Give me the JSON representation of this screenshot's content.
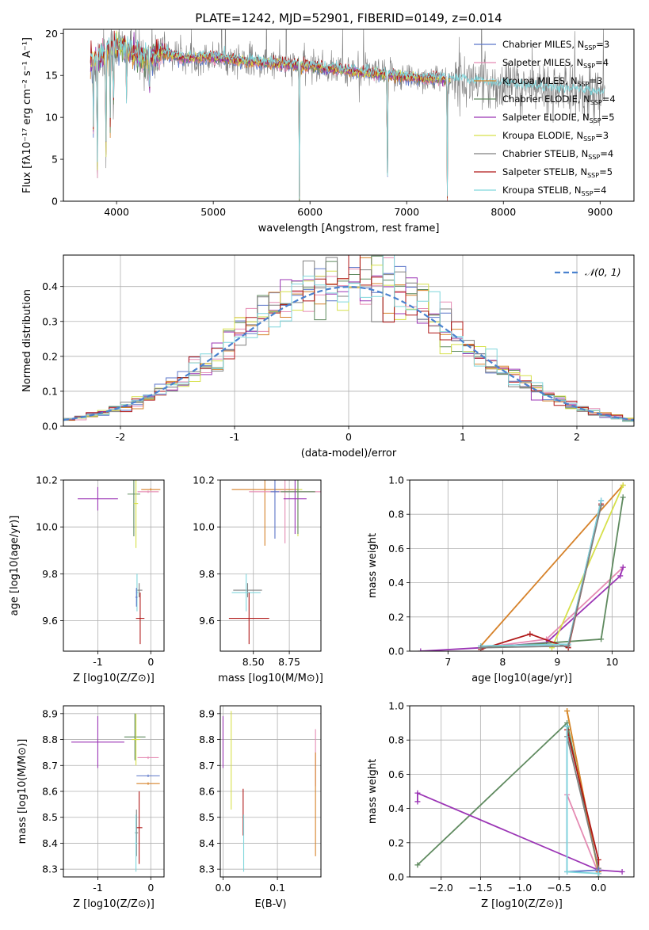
{
  "page_title": "PLATE=1242, MJD=52901, FIBERID=0149, z=0.014",
  "colors": {
    "chabrier_miles": "#5b76c9",
    "salpeter_miles": "#e58bb3",
    "kroupa_miles": "#d6822a",
    "chabrier_elodie": "#5f8a5f",
    "salpeter_elodie": "#9b35b5",
    "kroupa_elodie": "#d6e04a",
    "chabrier_stelib": "#7f7f7f",
    "salpeter_stelib": "#b01818",
    "kroupa_stelib": "#7fd6dc",
    "gaussian": "#4a82cf"
  },
  "chart_data": [
    {
      "id": "spectrum",
      "type": "line",
      "title": "PLATE=1242, MJD=52901, FIBERID=0149, z=0.014",
      "xlabel": "wavelength [Angstrom, rest frame]",
      "ylabel": "Flux [fλ10⁻¹⁷ erg cm⁻² s⁻¹ A⁻¹]",
      "xlim": [
        3450,
        9350
      ],
      "ylim": [
        0,
        20.5
      ],
      "xticks": [
        4000,
        5000,
        6000,
        7000,
        8000,
        9000
      ],
      "yticks": [
        0,
        5,
        10,
        15,
        20
      ],
      "legend_position": "top-right",
      "legend": [
        {
          "main": "Chabrier MILES, N",
          "sub": "SSP",
          "tail": "=3",
          "color_key": "chabrier_miles"
        },
        {
          "main": "Salpeter MILES, N",
          "sub": "SSP",
          "tail": "=4",
          "color_key": "salpeter_miles"
        },
        {
          "main": "Kroupa MILES, N",
          "sub": "SSP",
          "tail": "=3",
          "color_key": "kroupa_miles"
        },
        {
          "main": "Chabrier ELODIE, N",
          "sub": "SSP",
          "tail": "=4",
          "color_key": "chabrier_elodie"
        },
        {
          "main": "Salpeter ELODIE, N",
          "sub": "SSP",
          "tail": "=5",
          "color_key": "salpeter_elodie"
        },
        {
          "main": "Kroupa ELODIE, N",
          "sub": "SSP",
          "tail": "=3",
          "color_key": "kroupa_elodie"
        },
        {
          "main": "Chabrier STELIB, N",
          "sub": "SSP",
          "tail": "=4",
          "color_key": "chabrier_stelib"
        },
        {
          "main": "Salpeter STELIB, N",
          "sub": "SSP",
          "tail": "=5",
          "color_key": "salpeter_stelib"
        },
        {
          "main": "Kroupa STELIB, N",
          "sub": "SSP",
          "tail": "=4",
          "color_key": "kroupa_stelib"
        }
      ],
      "continuum_nodes": [
        [
          3730,
          16.5
        ],
        [
          3800,
          17.0
        ],
        [
          3900,
          18.0
        ],
        [
          4000,
          18.5
        ],
        [
          4100,
          18.0
        ],
        [
          4300,
          17.0
        ],
        [
          4500,
          17.8
        ],
        [
          4700,
          17.0
        ],
        [
          5000,
          17.2
        ],
        [
          5300,
          16.8
        ],
        [
          5600,
          16.4
        ],
        [
          5900,
          16.2
        ],
        [
          6200,
          15.8
        ],
        [
          6600,
          15.3
        ],
        [
          7000,
          14.8
        ],
        [
          7400,
          14.5
        ],
        [
          7800,
          14.1
        ],
        [
          8200,
          13.6
        ],
        [
          8600,
          13.2
        ],
        [
          9050,
          12.8
        ]
      ],
      "absorption_features": [
        {
          "wavelength": 3760,
          "depth": 8.0
        },
        {
          "wavelength": 3800,
          "depth": 16.0
        },
        {
          "wavelength": 3890,
          "depth": 15.0
        },
        {
          "wavelength": 3934,
          "depth": 9.0
        },
        {
          "wavelength": 3968,
          "depth": 8.0
        },
        {
          "wavelength": 4102,
          "depth": 6.0
        },
        {
          "wavelength": 4340,
          "depth": 5.0
        },
        {
          "wavelength": 5890,
          "depth": 16.0
        },
        {
          "wavelength": 6800,
          "depth": 15.0
        },
        {
          "wavelength": 7420,
          "depth": 14.0
        }
      ]
    },
    {
      "id": "residuals",
      "type": "histogram",
      "xlabel": "(data-model)/error",
      "ylabel": "Normed distribution",
      "xlim": [
        -2.5,
        2.5
      ],
      "ylim": [
        0,
        0.49
      ],
      "xticks": [
        -2,
        -1,
        0,
        1,
        2
      ],
      "yticks": [
        0.0,
        0.1,
        0.2,
        0.3,
        0.4
      ],
      "legend": "𝒩(0, 1)",
      "legend_position": "top-right",
      "bin_width": 0.1,
      "bin_start": -2.5,
      "reference_distribution": {
        "mean": 0,
        "sigma": 1
      }
    },
    {
      "id": "age-vs-Z",
      "type": "errorbar",
      "xlabel": "Z [log10(Z/Z⊙)]",
      "ylabel": "age  [log10(age/yr)]",
      "xlim": [
        -1.65,
        0.25
      ],
      "ylim": [
        9.47,
        10.2
      ],
      "xticks": [
        -1,
        0
      ],
      "yticks": [
        9.6,
        9.8,
        10.0,
        10.2
      ],
      "points": [
        {
          "c": "salpeter_elodie",
          "x": -1.0,
          "y": 10.12,
          "xe": 0.38,
          "ye": 0.05
        },
        {
          "c": "chabrier_elodie",
          "x": -0.32,
          "y": 10.14,
          "xe": 0.12,
          "ye": 0.18
        },
        {
          "c": "kroupa_elodie",
          "x": -0.28,
          "y": 10.1,
          "xe": 0.04,
          "ye": 0.19
        },
        {
          "c": "kroupa_miles",
          "x": 0.0,
          "y": 10.16,
          "xe": 0.18,
          "ye": 0.005
        },
        {
          "c": "salpeter_miles",
          "x": -0.05,
          "y": 10.15,
          "xe": 0.2,
          "ye": 0.005
        },
        {
          "c": "chabrier_stelib",
          "x": -0.22,
          "y": 9.73,
          "xe": 0.06,
          "ye": 0.03
        },
        {
          "c": "kroupa_stelib",
          "x": -0.26,
          "y": 9.72,
          "xe": 0.02,
          "ye": 0.08
        },
        {
          "c": "chabrier_miles",
          "x": -0.27,
          "y": 9.7,
          "xe": 0.02,
          "ye": 0.04
        },
        {
          "c": "salpeter_stelib",
          "x": -0.2,
          "y": 9.61,
          "xe": 0.08,
          "ye": 0.11
        }
      ]
    },
    {
      "id": "age-vs-mass",
      "type": "errorbar",
      "xlabel": "mass [log10(M/M⊙)]",
      "ylabel": "",
      "xlim": [
        8.27,
        8.97
      ],
      "ylim": [
        9.47,
        10.2
      ],
      "xticks": [
        8.5,
        8.75
      ],
      "xticklabels": [
        "8.50",
        "8.75"
      ],
      "yticks": [
        9.6,
        9.8,
        10.0,
        10.2
      ],
      "points": [
        {
          "c": "kroupa_miles",
          "x": 8.58,
          "y": 10.16,
          "xe": 0.23,
          "ye": 0.24
        },
        {
          "c": "salpeter_miles",
          "x": 8.72,
          "y": 10.15,
          "xe": 0.25,
          "ye": 0.22
        },
        {
          "c": "kroupa_elodie",
          "x": 8.81,
          "y": 10.16,
          "xe": 0.03,
          "ye": 0.2
        },
        {
          "c": "chabrier_elodie",
          "x": 8.81,
          "y": 10.15,
          "xe": 0.12,
          "ye": 0.18
        },
        {
          "c": "salpeter_elodie",
          "x": 8.79,
          "y": 10.12,
          "xe": 0.08,
          "ye": 0.15
        },
        {
          "c": "chabrier_miles",
          "x": 8.65,
          "y": 10.15,
          "xe": 0.03,
          "ye": 0.2
        },
        {
          "c": "chabrier_stelib",
          "x": 8.46,
          "y": 9.73,
          "xe": 0.1,
          "ye": 0.03
        },
        {
          "c": "kroupa_stelib",
          "x": 8.45,
          "y": 9.72,
          "xe": 0.1,
          "ye": 0.08
        },
        {
          "c": "salpeter_stelib",
          "x": 8.47,
          "y": 9.61,
          "xe": 0.14,
          "ye": 0.11
        }
      ]
    },
    {
      "id": "massweight-vs-age",
      "type": "line",
      "xlabel": "age  [log10(age/yr)]",
      "ylabel": "mass weight",
      "xlim": [
        6.3,
        10.4
      ],
      "ylim": [
        0.0,
        1.0
      ],
      "xticks": [
        7,
        8,
        9,
        10
      ],
      "yticks": [
        0.0,
        0.2,
        0.4,
        0.6,
        0.8,
        1.0
      ],
      "series": [
        {
          "c": "kroupa_miles",
          "x": [
            7.6,
            10.2
          ],
          "y": [
            0.03,
            0.97
          ]
        },
        {
          "c": "salpeter_miles",
          "x": [
            7.6,
            8.8,
            10.2
          ],
          "y": [
            0.02,
            0.07,
            0.49
          ]
        },
        {
          "c": "chabrier_miles",
          "x": [
            7.6,
            9.2,
            9.8
          ],
          "y": [
            0.03,
            0.04,
            0.88
          ]
        },
        {
          "c": "salpeter_elodie",
          "x": [
            6.5,
            7.6,
            8.8,
            10.15,
            10.2
          ],
          "y": [
            0.0,
            0.02,
            0.05,
            0.44,
            0.49
          ]
        },
        {
          "c": "kroupa_elodie",
          "x": [
            8.9,
            10.2
          ],
          "y": [
            0.02,
            0.97
          ]
        },
        {
          "c": "chabrier_elodie",
          "x": [
            7.6,
            9.8,
            10.2
          ],
          "y": [
            0.02,
            0.07,
            0.9
          ]
        },
        {
          "c": "salpeter_stelib",
          "x": [
            7.6,
            8.5,
            9.2,
            9.8
          ],
          "y": [
            0.01,
            0.1,
            0.02,
            0.86
          ]
        },
        {
          "c": "kroupa_stelib",
          "x": [
            7.6,
            9.2,
            9.8
          ],
          "y": [
            0.03,
            0.04,
            0.88
          ]
        },
        {
          "c": "chabrier_stelib",
          "x": [
            7.6,
            9.2,
            9.8
          ],
          "y": [
            0.02,
            0.03,
            0.85
          ]
        }
      ]
    },
    {
      "id": "mass-vs-Z",
      "type": "errorbar",
      "xlabel": "Z [log10(Z/Z⊙)]",
      "ylabel": "mass [log10(M/M⊙)]",
      "xlim": [
        -1.65,
        0.25
      ],
      "ylim": [
        8.27,
        8.93
      ],
      "xticks": [
        -1,
        0
      ],
      "yticks": [
        8.3,
        8.4,
        8.5,
        8.6,
        8.7,
        8.8,
        8.9
      ],
      "points": [
        {
          "c": "salpeter_elodie",
          "x": -1.0,
          "y": 8.79,
          "xe": 0.5,
          "ye": 0.1
        },
        {
          "c": "chabrier_elodie",
          "x": -0.3,
          "y": 8.81,
          "xe": 0.2,
          "ye": 0.09
        },
        {
          "c": "kroupa_elodie",
          "x": -0.28,
          "y": 8.8,
          "xe": 0.08,
          "ye": 0.1
        },
        {
          "c": "salpeter_miles",
          "x": -0.05,
          "y": 8.73,
          "xe": 0.2,
          "ye": 0.005
        },
        {
          "c": "chabrier_miles",
          "x": -0.05,
          "y": 8.66,
          "xe": 0.22,
          "ye": 0.005
        },
        {
          "c": "kroupa_miles",
          "x": -0.05,
          "y": 8.63,
          "xe": 0.22,
          "ye": 0.005
        },
        {
          "c": "salpeter_stelib",
          "x": -0.22,
          "y": 8.46,
          "xe": 0.06,
          "ye": 0.14
        },
        {
          "c": "chabrier_stelib",
          "x": -0.27,
          "y": 8.44,
          "xe": 0.03,
          "ye": 0.09
        },
        {
          "c": "kroupa_stelib",
          "x": -0.28,
          "y": 8.4,
          "xe": 0.02,
          "ye": 0.11
        }
      ]
    },
    {
      "id": "mass-vs-EBV",
      "type": "errorbar",
      "xlabel": "E(B-V)",
      "ylabel": "",
      "xlim": [
        -0.005,
        0.18
      ],
      "ylim": [
        8.27,
        8.93
      ],
      "xticks": [
        0.0,
        0.1
      ],
      "xticklabels": [
        "0.0",
        "0.1"
      ],
      "yticks": [
        8.3,
        8.4,
        8.5,
        8.6,
        8.7,
        8.8,
        8.9
      ],
      "points": [
        {
          "c": "salpeter_elodie",
          "x": 0.0,
          "y": 8.79,
          "xe": 0.0,
          "ye": 0.1
        },
        {
          "c": "kroupa_elodie",
          "x": 0.015,
          "y": 8.72,
          "xe": 0.0,
          "ye": 0.19
        },
        {
          "c": "salpeter_stelib",
          "x": 0.037,
          "y": 8.52,
          "xe": 0.0,
          "ye": 0.09
        },
        {
          "c": "kroupa_stelib",
          "x": 0.038,
          "y": 8.4,
          "xe": 0.0,
          "ye": 0.11
        },
        {
          "c": "salpeter_miles",
          "x": 0.17,
          "y": 8.73,
          "xe": 0.0,
          "ye": 0.11
        },
        {
          "c": "kroupa_miles",
          "x": 0.17,
          "y": 8.55,
          "xe": 0.0,
          "ye": 0.2
        }
      ]
    },
    {
      "id": "massweight-vs-Z",
      "type": "line",
      "xlabel": "Z [log10(Z/Z⊙)]",
      "ylabel": "mass weight",
      "xlim": [
        -2.4,
        0.45
      ],
      "ylim": [
        0.0,
        1.0
      ],
      "xticks": [
        -2.0,
        -1.5,
        -1.0,
        -0.5,
        0.0
      ],
      "xticklabels": [
        "−2.0",
        "−1.5",
        "−1.0",
        "−0.5",
        "0.0"
      ],
      "yticks": [
        0.0,
        0.2,
        0.4,
        0.6,
        0.8,
        1.0
      ],
      "series": [
        {
          "c": "chabrier_elodie",
          "x": [
            -2.3,
            -0.4,
            0.0,
            0.0
          ],
          "y": [
            0.07,
            0.9,
            0.03,
            0.0
          ]
        },
        {
          "c": "salpeter_elodie",
          "x": [
            -2.3,
            -2.3,
            0.0,
            0.3
          ],
          "y": [
            0.44,
            0.49,
            0.04,
            0.03
          ]
        },
        {
          "c": "kroupa_elodie",
          "x": [
            -0.4,
            0.0
          ],
          "y": [
            0.97,
            0.02
          ]
        },
        {
          "c": "kroupa_miles",
          "x": [
            -0.4,
            0.0
          ],
          "y": [
            0.97,
            0.03
          ]
        },
        {
          "c": "salpeter_miles",
          "x": [
            -0.4,
            0.0
          ],
          "y": [
            0.48,
            0.02
          ]
        },
        {
          "c": "salpeter_stelib",
          "x": [
            -0.4,
            0.0,
            0.0
          ],
          "y": [
            0.86,
            0.1,
            0.02
          ]
        },
        {
          "c": "chabrier_stelib",
          "x": [
            -0.4,
            0.0
          ],
          "y": [
            0.82,
            0.05
          ]
        },
        {
          "c": "chabrier_miles",
          "x": [
            -0.4,
            -0.4,
            0.0
          ],
          "y": [
            0.88,
            0.03,
            0.04
          ]
        },
        {
          "c": "kroupa_stelib",
          "x": [
            -0.4,
            -0.4,
            0.0
          ],
          "y": [
            0.88,
            0.03,
            0.02
          ]
        }
      ]
    }
  ]
}
